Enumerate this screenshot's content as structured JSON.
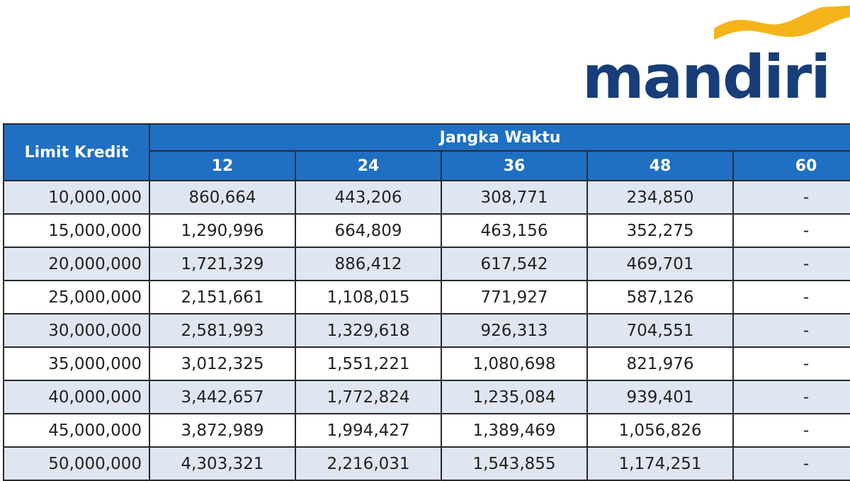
{
  "logo": {
    "text": "mandiri"
  },
  "table": {
    "row_header": "Limit Kredit",
    "group_header": "Jangka Waktu",
    "columns": [
      "12",
      "24",
      "36",
      "48",
      "60"
    ],
    "rows": [
      [
        "10,000,000",
        "860,664",
        "443,206",
        "308,771",
        "234,850",
        "-"
      ],
      [
        "15,000,000",
        "1,290,996",
        "664,809",
        "463,156",
        "352,275",
        "-"
      ],
      [
        "20,000,000",
        "1,721,329",
        "886,412",
        "617,542",
        "469,701",
        "-"
      ],
      [
        "25,000,000",
        "2,151,661",
        "1,108,015",
        "771,927",
        "587,126",
        "-"
      ],
      [
        "30,000,000",
        "2,581,993",
        "1,329,618",
        "926,313",
        "704,551",
        "-"
      ],
      [
        "35,000,000",
        "3,012,325",
        "1,551,221",
        "1,080,698",
        "821,976",
        "-"
      ],
      [
        "40,000,000",
        "3,442,657",
        "1,772,824",
        "1,235,084",
        "939,401",
        "-"
      ],
      [
        "45,000,000",
        "3,872,989",
        "1,994,427",
        "1,389,469",
        "1,056,826",
        "-"
      ],
      [
        "50,000,000",
        "4,303,321",
        "2,216,031",
        "1,543,855",
        "1,174,251",
        "-"
      ]
    ]
  }
}
